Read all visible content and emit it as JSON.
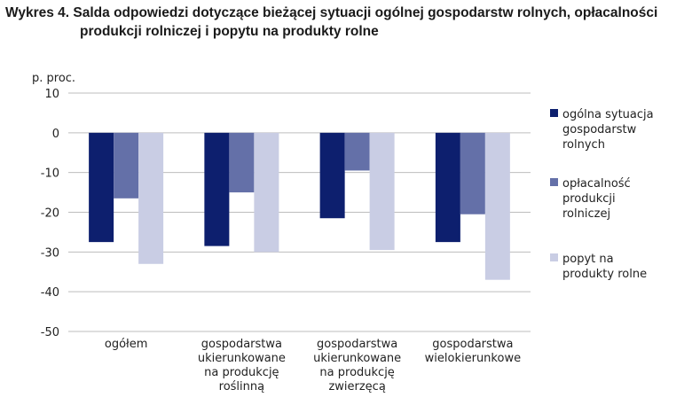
{
  "title": {
    "line1": "Wykres 4. Salda odpowiedzi dotyczące bieżącej  sytuacji ogólnej gospodarstw rolnych, opłacalności",
    "line2": "produkcji rolniczej i popytu na produkty rolne"
  },
  "chart_data": {
    "type": "bar",
    "ylabel": "p. proc.",
    "ylim": [
      -50,
      10
    ],
    "yticks": [
      10,
      0,
      -10,
      -20,
      -30,
      -40,
      -50
    ],
    "grid": true,
    "legend_position": "right",
    "categories": [
      [
        "ogółem"
      ],
      [
        "gospodarstwa",
        "ukierunkowane",
        "na produkcję",
        "roślinną"
      ],
      [
        "gospodarstwa",
        "ukierunkowane",
        "na produkcję",
        "zwierzęcą"
      ],
      [
        "gospodarstwa",
        "wielokierunkowe"
      ]
    ],
    "series": [
      {
        "name": [
          "ogólna sytuacja",
          "gospodarstw",
          "rolnych"
        ],
        "color": "#0d1f6e",
        "values": [
          -27.5,
          -28.5,
          -21.5,
          -27.5
        ]
      },
      {
        "name": [
          "opłacalność",
          "produkcji",
          "rolniczej"
        ],
        "color": "#6470a8",
        "values": [
          -16.5,
          -15,
          -9.5,
          -20.5
        ]
      },
      {
        "name": [
          "popyt na",
          "produkty rolne"
        ],
        "color": "#c9cde4",
        "values": [
          -33,
          -30,
          -29.5,
          -37
        ]
      }
    ]
  }
}
